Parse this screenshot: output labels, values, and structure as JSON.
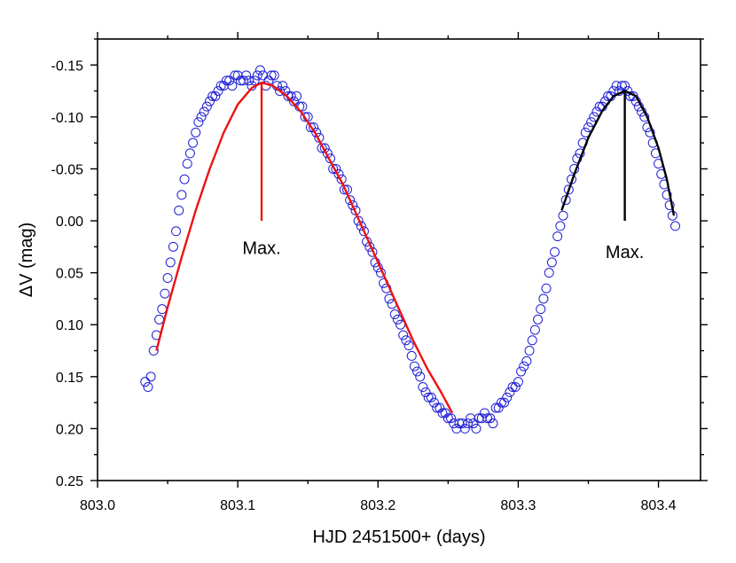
{
  "chart_data": {
    "type": "scatter",
    "title": "",
    "xlabel": "HJD 2451500+ (days)",
    "ylabel": "ΔV (mag)",
    "xlim": [
      803.0,
      803.43
    ],
    "ylim": [
      0.25,
      -0.175
    ],
    "y_inverted": true,
    "grid": false,
    "xticks": [
      803.0,
      803.1,
      803.2,
      803.3,
      803.4
    ],
    "xtick_labels": [
      "803.0",
      "803.1",
      "803.2",
      "803.3",
      "803.4"
    ],
    "yticks": [
      -0.15,
      -0.1,
      -0.05,
      0.0,
      0.05,
      0.1,
      0.15,
      0.2,
      0.25
    ],
    "ytick_labels": [
      "-0.15",
      "-0.10",
      "-0.05",
      "0.00",
      "0.05",
      "0.10",
      "0.15",
      "0.20",
      "0.25"
    ],
    "colors": {
      "points": "#1f1fd6",
      "fit1": "#ee1111",
      "fit2": "#000000"
    },
    "series": [
      {
        "kind": "observations",
        "marker": "open-circle",
        "x": [
          803.034,
          803.036,
          803.038,
          803.04,
          803.042,
          803.044,
          803.046,
          803.048,
          803.05,
          803.052,
          803.054,
          803.056,
          803.058,
          803.06,
          803.062,
          803.064,
          803.066,
          803.068,
          803.07,
          803.072,
          803.074,
          803.076,
          803.078,
          803.08,
          803.082,
          803.084,
          803.086,
          803.088,
          803.09,
          803.092,
          803.094,
          803.096,
          803.098,
          803.1,
          803.102,
          803.104,
          803.106,
          803.108,
          803.11,
          803.112,
          803.114,
          803.116,
          803.118,
          803.12,
          803.122,
          803.124,
          803.126,
          803.128,
          803.13,
          803.132,
          803.134,
          803.136,
          803.138,
          803.14,
          803.142,
          803.144,
          803.146,
          803.148,
          803.15,
          803.152,
          803.154,
          803.156,
          803.158,
          803.16,
          803.162,
          803.164,
          803.166,
          803.168,
          803.17,
          803.172,
          803.174,
          803.176,
          803.178,
          803.18,
          803.182,
          803.184,
          803.186,
          803.188,
          803.19,
          803.192,
          803.194,
          803.196,
          803.198,
          803.2,
          803.202,
          803.204,
          803.206,
          803.208,
          803.21,
          803.212,
          803.214,
          803.216,
          803.218,
          803.22,
          803.222,
          803.224,
          803.226,
          803.228,
          803.23,
          803.232,
          803.234,
          803.236,
          803.238,
          803.24,
          803.242,
          803.244,
          803.246,
          803.248,
          803.25,
          803.252,
          803.254,
          803.256,
          803.258,
          803.26,
          803.262,
          803.264,
          803.266,
          803.268,
          803.27,
          803.272,
          803.274,
          803.276,
          803.278,
          803.28,
          803.282,
          803.284,
          803.286,
          803.288,
          803.29,
          803.292,
          803.294,
          803.296,
          803.298,
          803.3,
          803.302,
          803.304,
          803.306,
          803.308,
          803.31,
          803.312,
          803.314,
          803.316,
          803.318,
          803.32,
          803.322,
          803.324,
          803.326,
          803.328,
          803.33,
          803.332,
          803.334,
          803.336,
          803.338,
          803.34,
          803.342,
          803.344,
          803.346,
          803.348,
          803.35,
          803.352,
          803.354,
          803.356,
          803.358,
          803.36,
          803.362,
          803.364,
          803.366,
          803.368,
          803.37,
          803.372,
          803.374,
          803.376,
          803.378,
          803.38,
          803.382,
          803.384,
          803.386,
          803.388,
          803.39,
          803.392,
          803.394,
          803.396,
          803.398,
          803.4,
          803.402,
          803.404,
          803.406,
          803.408,
          803.41,
          803.412
        ],
        "y": [
          0.155,
          0.16,
          0.15,
          0.125,
          0.11,
          0.095,
          0.085,
          0.07,
          0.055,
          0.04,
          0.025,
          0.01,
          -0.01,
          -0.025,
          -0.04,
          -0.055,
          -0.065,
          -0.075,
          -0.085,
          -0.095,
          -0.1,
          -0.105,
          -0.11,
          -0.115,
          -0.12,
          -0.12,
          -0.125,
          -0.13,
          -0.13,
          -0.135,
          -0.135,
          -0.13,
          -0.14,
          -0.14,
          -0.135,
          -0.135,
          -0.14,
          -0.135,
          -0.13,
          -0.135,
          -0.14,
          -0.145,
          -0.14,
          -0.13,
          -0.135,
          -0.14,
          -0.14,
          -0.13,
          -0.125,
          -0.13,
          -0.125,
          -0.12,
          -0.12,
          -0.115,
          -0.12,
          -0.11,
          -0.11,
          -0.1,
          -0.1,
          -0.09,
          -0.09,
          -0.085,
          -0.08,
          -0.07,
          -0.07,
          -0.065,
          -0.06,
          -0.05,
          -0.05,
          -0.045,
          -0.04,
          -0.03,
          -0.03,
          -0.02,
          -0.015,
          -0.01,
          0.0,
          0.005,
          0.01,
          0.02,
          0.025,
          0.03,
          0.04,
          0.045,
          0.05,
          0.06,
          0.065,
          0.075,
          0.08,
          0.09,
          0.095,
          0.1,
          0.11,
          0.115,
          0.12,
          0.13,
          0.14,
          0.145,
          0.15,
          0.16,
          0.165,
          0.17,
          0.17,
          0.175,
          0.18,
          0.18,
          0.185,
          0.185,
          0.19,
          0.19,
          0.195,
          0.2,
          0.195,
          0.195,
          0.2,
          0.195,
          0.19,
          0.195,
          0.2,
          0.19,
          0.19,
          0.185,
          0.19,
          0.19,
          0.195,
          0.18,
          0.18,
          0.175,
          0.175,
          0.17,
          0.165,
          0.16,
          0.16,
          0.155,
          0.145,
          0.14,
          0.135,
          0.125,
          0.115,
          0.105,
          0.095,
          0.085,
          0.075,
          0.065,
          0.05,
          0.04,
          0.03,
          0.015,
          0.005,
          -0.005,
          -0.02,
          -0.03,
          -0.04,
          -0.05,
          -0.06,
          -0.065,
          -0.075,
          -0.085,
          -0.09,
          -0.095,
          -0.1,
          -0.105,
          -0.11,
          -0.11,
          -0.115,
          -0.12,
          -0.12,
          -0.125,
          -0.13,
          -0.125,
          -0.13,
          -0.13,
          -0.125,
          -0.12,
          -0.12,
          -0.115,
          -0.11,
          -0.105,
          -0.1,
          -0.09,
          -0.085,
          -0.075,
          -0.065,
          -0.055,
          -0.045,
          -0.035,
          -0.025,
          -0.015,
          -0.005,
          0.005
        ]
      },
      {
        "kind": "fit",
        "color": "#ee1111",
        "x": [
          803.042,
          803.05,
          803.06,
          803.07,
          803.08,
          803.09,
          803.1,
          803.11,
          803.117,
          803.125,
          803.135,
          803.145,
          803.155,
          803.165,
          803.175,
          803.185,
          803.195,
          803.205,
          803.215,
          803.225,
          803.235,
          803.245,
          803.253
        ],
        "y": [
          0.125,
          0.083,
          0.035,
          -0.01,
          -0.05,
          -0.085,
          -0.112,
          -0.128,
          -0.133,
          -0.13,
          -0.12,
          -0.105,
          -0.085,
          -0.06,
          -0.035,
          -0.005,
          0.025,
          0.055,
          0.085,
          0.115,
          0.142,
          0.165,
          0.185
        ]
      },
      {
        "kind": "fit",
        "color": "#000000",
        "x": [
          803.331,
          803.34,
          803.35,
          803.36,
          803.368,
          803.376,
          803.384,
          803.392,
          803.4,
          803.406,
          803.411
        ],
        "y": [
          -0.01,
          -0.045,
          -0.08,
          -0.106,
          -0.12,
          -0.125,
          -0.12,
          -0.1,
          -0.07,
          -0.04,
          -0.005
        ]
      }
    ],
    "annotations": [
      {
        "text": "Max.",
        "x": 803.117,
        "y_line": [
          0.0,
          -0.133
        ],
        "label_y": 0.026,
        "color": "#ee1111"
      },
      {
        "text": "Max.",
        "x": 803.376,
        "y_line": [
          0.0,
          -0.125
        ],
        "label_y": 0.03,
        "color": "#000000"
      }
    ]
  }
}
